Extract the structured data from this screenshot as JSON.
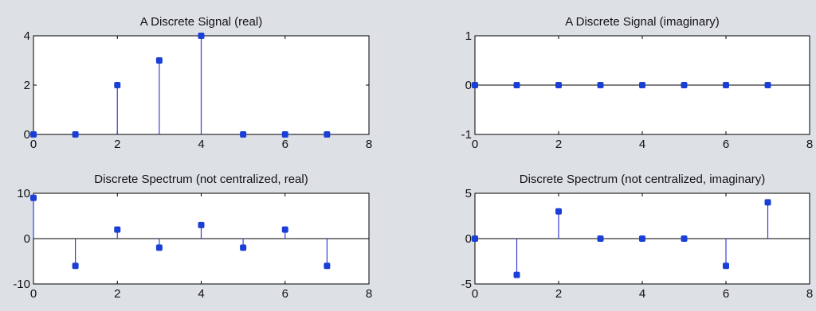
{
  "colors": {
    "figure_background": "#dde1e6",
    "axes_background": "#ffffff",
    "stem": "#3a3ad8",
    "marker": "#1a3fd6"
  },
  "chart_data": [
    {
      "type": "stem",
      "title": "A Discrete Signal (real)",
      "x": [
        0,
        1,
        2,
        3,
        4,
        5,
        6,
        7
      ],
      "values": [
        0,
        0,
        2,
        3,
        4,
        0,
        0,
        0
      ],
      "xlim": [
        0,
        8
      ],
      "ylim": [
        0,
        4
      ],
      "xticks": [
        0,
        2,
        4,
        6,
        8
      ],
      "yticks": [
        0,
        2,
        4
      ],
      "xticklabels": [
        "0",
        "2",
        "4",
        "6",
        "8"
      ],
      "yticklabels": [
        "0",
        "2",
        "4"
      ],
      "grid": false
    },
    {
      "type": "stem",
      "title": "A Discrete Signal (imaginary)",
      "x": [
        0,
        1,
        2,
        3,
        4,
        5,
        6,
        7
      ],
      "values": [
        0,
        0,
        0,
        0,
        0,
        0,
        0,
        0
      ],
      "xlim": [
        0,
        8
      ],
      "ylim": [
        -1,
        1
      ],
      "xticks": [
        0,
        2,
        4,
        6,
        8
      ],
      "yticks": [
        -1,
        0,
        1
      ],
      "xticklabels": [
        "0",
        "2",
        "4",
        "6",
        "8"
      ],
      "yticklabels": [
        "-1",
        "0",
        "1"
      ],
      "grid": false
    },
    {
      "type": "stem",
      "title": "Discrete Spectrum (not centralized, real)",
      "x": [
        0,
        1,
        2,
        3,
        4,
        5,
        6,
        7
      ],
      "values": [
        9,
        -6,
        2,
        -2,
        3,
        -2,
        2,
        -6
      ],
      "xlim": [
        0,
        8
      ],
      "ylim": [
        -10,
        10
      ],
      "xticks": [
        0,
        2,
        4,
        6,
        8
      ],
      "yticks": [
        -10,
        0,
        10
      ],
      "xticklabels": [
        "0",
        "2",
        "4",
        "6",
        "8"
      ],
      "yticklabels": [
        "-10",
        "0",
        "10"
      ],
      "grid": false
    },
    {
      "type": "stem",
      "title": "Discrete Spectrum (not centralized, imaginary)",
      "x": [
        0,
        1,
        2,
        3,
        4,
        5,
        6,
        7
      ],
      "values": [
        0,
        -4,
        3,
        0,
        0,
        0,
        -3,
        4
      ],
      "xlim": [
        0,
        8
      ],
      "ylim": [
        -5,
        5
      ],
      "xticks": [
        0,
        2,
        4,
        6,
        8
      ],
      "yticks": [
        -5,
        0,
        5
      ],
      "xticklabels": [
        "0",
        "2",
        "4",
        "6",
        "8"
      ],
      "yticklabels": [
        "-5",
        "0",
        "5"
      ],
      "grid": false
    }
  ]
}
